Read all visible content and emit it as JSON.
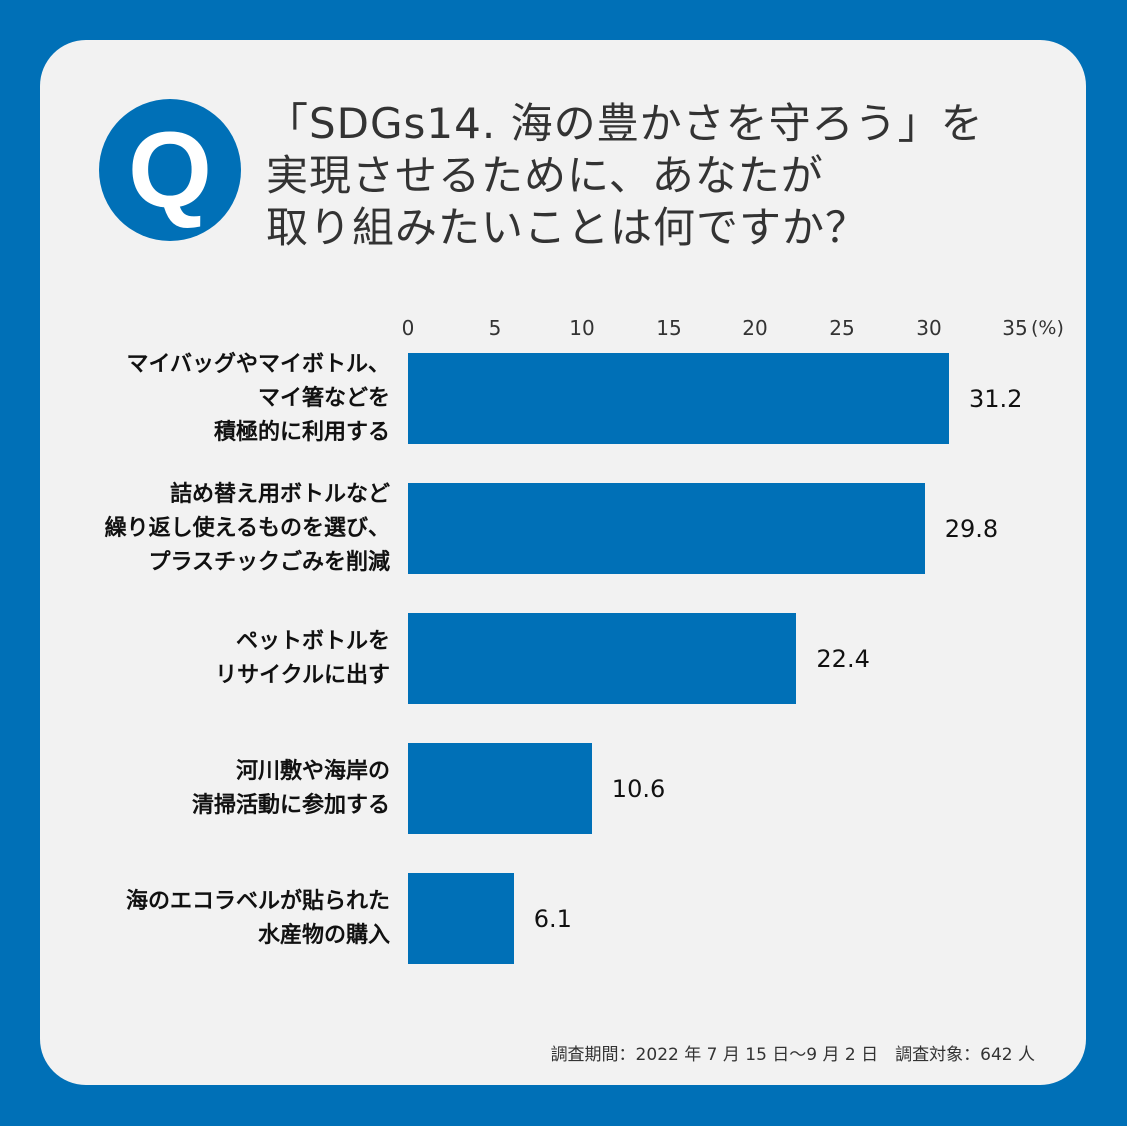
{
  "colors": {
    "frame": "#0070b7",
    "panel": "#f2f2f2",
    "bar": "#0070b7",
    "title_text": "#333333",
    "label_text": "#111111"
  },
  "badge": {
    "letter": "Q"
  },
  "title": {
    "lines": [
      "「SDGs14. 海の豊かさを守ろう」を",
      "実現させるために、あなたが",
      "取り組みたいことは何ですか？"
    ]
  },
  "axis": {
    "ticks": [
      "0",
      "5",
      "10",
      "15",
      "20",
      "25",
      "30",
      "35"
    ],
    "unit": "(%)"
  },
  "footer": {
    "text": "調査期間：2022 年 7 月 15 日～9 月 2 日　調査対象：642 人"
  },
  "chart_data": {
    "type": "bar",
    "orientation": "horizontal",
    "title": "「SDGs14. 海の豊かさを守ろう」を実現させるために、あなたが取り組みたいことは何ですか？",
    "xlabel": "(%)",
    "ylabel": "",
    "xlim": [
      0,
      35
    ],
    "xticks": [
      0,
      5,
      10,
      15,
      20,
      25,
      30,
      35
    ],
    "grid": false,
    "legend": null,
    "categories": [
      "マイバッグやマイボトル、マイ箸などを積極的に利用する",
      "詰め替え用ボトルなど繰り返し使えるものを選び、プラスチックごみを削減",
      "ペットボトルをリサイクルに出す",
      "河川敷や海岸の清掃活動に参加する",
      "海のエコラベルが貼られた水産物の購入"
    ],
    "category_lines": [
      [
        "マイバッグやマイボトル、",
        "マイ箸などを",
        "積極的に利用する"
      ],
      [
        "詰め替え用ボトルなど",
        "繰り返し使えるものを選び、",
        "プラスチックごみを削減"
      ],
      [
        "ペットボトルを",
        "リサイクルに出す"
      ],
      [
        "河川敷や海岸の",
        "清掃活動に参加する"
      ],
      [
        "海のエコラベルが貼られた",
        "水産物の購入"
      ]
    ],
    "values": [
      31.2,
      29.8,
      22.4,
      10.6,
      6.1
    ],
    "value_labels": [
      "31.2",
      "29.8",
      "22.4",
      "10.6",
      "6.1"
    ],
    "annotation": "調査期間：2022 年 7 月 15 日～9 月 2 日　調査対象：642 人"
  }
}
